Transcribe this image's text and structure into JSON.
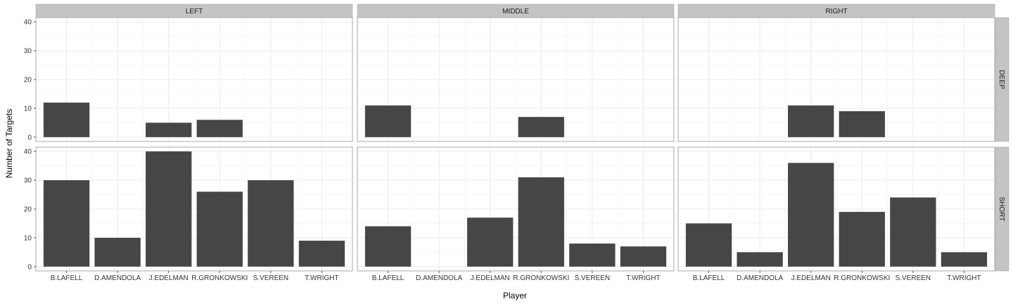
{
  "chart_data": {
    "type": "bar",
    "facet_columns": [
      "LEFT",
      "MIDDLE",
      "RIGHT"
    ],
    "facet_rows": [
      "DEEP",
      "SHORT"
    ],
    "categories": [
      "B.LAFELL",
      "D.AMENDOLA",
      "J.EDELMAN",
      "R.GRONKOWSKI",
      "S.VEREEN",
      "T.WRIGHT"
    ],
    "yticks": [
      0,
      10,
      20,
      30,
      40
    ],
    "ylim": [
      -1.5,
      41.5
    ],
    "xlabel": "Player",
    "ylabel": "Number of Targets",
    "grid": true,
    "bar_color": "#464646",
    "strip_color": "#c4c4c4",
    "panels": [
      {
        "row": "DEEP",
        "col": "LEFT",
        "values": [
          12,
          0,
          5,
          6,
          0,
          0
        ]
      },
      {
        "row": "DEEP",
        "col": "MIDDLE",
        "values": [
          11,
          0,
          0,
          7,
          0,
          0
        ]
      },
      {
        "row": "DEEP",
        "col": "RIGHT",
        "values": [
          0,
          0,
          11,
          9,
          0,
          0
        ]
      },
      {
        "row": "SHORT",
        "col": "LEFT",
        "values": [
          30,
          10,
          40,
          26,
          30,
          9
        ]
      },
      {
        "row": "SHORT",
        "col": "MIDDLE",
        "values": [
          14,
          0,
          17,
          31,
          8,
          7
        ]
      },
      {
        "row": "SHORT",
        "col": "RIGHT",
        "values": [
          15,
          5,
          36,
          19,
          24,
          5
        ]
      }
    ]
  }
}
